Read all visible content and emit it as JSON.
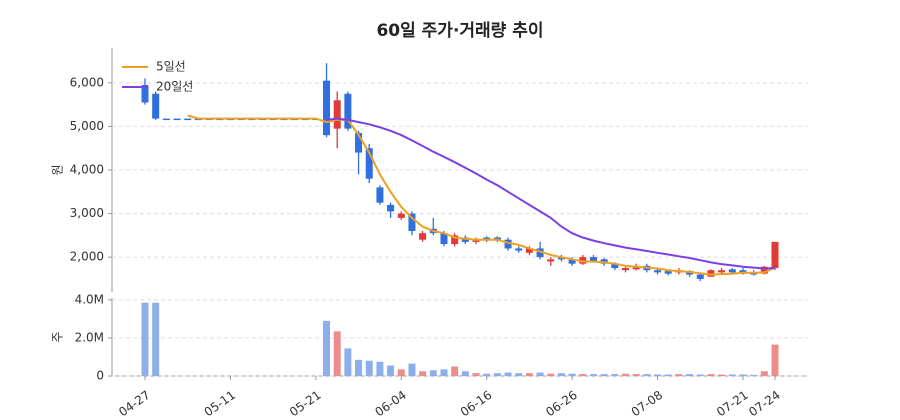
{
  "chart_data": {
    "type": "candlestick",
    "title": "60일 주가·거래량 추이",
    "y_label": "원",
    "volume_label": "주",
    "categories": [
      "04-27",
      null,
      null,
      null,
      null,
      null,
      null,
      null,
      "05-11",
      null,
      null,
      null,
      null,
      null,
      null,
      null,
      "05-21",
      null,
      null,
      null,
      null,
      null,
      null,
      null,
      "06-04",
      null,
      null,
      null,
      null,
      null,
      null,
      null,
      "06-16",
      null,
      null,
      null,
      null,
      null,
      null,
      null,
      "06-26",
      null,
      null,
      null,
      null,
      null,
      null,
      null,
      "07-08",
      null,
      null,
      null,
      null,
      null,
      null,
      null,
      "07-21",
      null,
      null,
      "07-24"
    ],
    "open": [
      5950,
      5750,
      5180,
      5180,
      5180,
      5180,
      5180,
      5180,
      5180,
      5180,
      5180,
      5180,
      5180,
      5180,
      5180,
      5180,
      5180,
      6050,
      4950,
      5750,
      4850,
      4500,
      3600,
      3200,
      2900,
      3000,
      2400,
      2650,
      2550,
      2300,
      2450,
      2350,
      2450,
      2450,
      2400,
      2200,
      2100,
      2200,
      1900,
      2000,
      1950,
      1850,
      2000,
      1950,
      1850,
      1700,
      1720,
      1800,
      1700,
      1680,
      1650,
      1680,
      1600,
      1550,
      1650,
      1720,
      1700,
      1650,
      1620,
      1750
    ],
    "high": [
      6100,
      5800,
      5180,
      5180,
      5180,
      5180,
      5180,
      5180,
      5180,
      5180,
      5180,
      5180,
      5180,
      5180,
      5180,
      5180,
      5180,
      6450,
      5800,
      5800,
      4900,
      4600,
      3650,
      3250,
      3050,
      3050,
      2600,
      2900,
      2600,
      2550,
      2500,
      2450,
      2480,
      2480,
      2450,
      2250,
      2250,
      2350,
      2000,
      2050,
      2000,
      2050,
      2050,
      1980,
      1880,
      1780,
      1850,
      1850,
      1750,
      1700,
      1750,
      1700,
      1650,
      1720,
      1750,
      1750,
      1750,
      1700,
      1800,
      2350
    ],
    "low": [
      5500,
      5150,
      5180,
      5180,
      5180,
      5180,
      5180,
      5180,
      5180,
      5180,
      5180,
      5180,
      5180,
      5180,
      5180,
      5180,
      5180,
      4750,
      4500,
      4900,
      3900,
      3700,
      3200,
      2900,
      2850,
      2500,
      2350,
      2500,
      2250,
      2250,
      2300,
      2300,
      2350,
      2350,
      2150,
      2100,
      2050,
      1950,
      1800,
      1900,
      1800,
      1820,
      1880,
      1800,
      1700,
      1650,
      1700,
      1650,
      1600,
      1580,
      1600,
      1550,
      1450,
      1550,
      1620,
      1620,
      1600,
      1580,
      1600,
      1700
    ],
    "close": [
      5550,
      5180,
      5180,
      5180,
      5180,
      5180,
      5180,
      5180,
      5180,
      5180,
      5180,
      5180,
      5180,
      5180,
      5180,
      5180,
      5180,
      4800,
      5600,
      4950,
      4400,
      3800,
      3250,
      3050,
      3000,
      2600,
      2550,
      2550,
      2300,
      2500,
      2350,
      2400,
      2380,
      2400,
      2200,
      2150,
      2200,
      2000,
      1950,
      1950,
      1850,
      2000,
      1900,
      1850,
      1750,
      1750,
      1780,
      1700,
      1650,
      1620,
      1700,
      1600,
      1500,
      1700,
      1700,
      1650,
      1620,
      1600,
      1780,
      2350
    ],
    "volume": [
      3850000,
      3850000,
      0,
      0,
      0,
      0,
      0,
      0,
      0,
      0,
      0,
      0,
      0,
      0,
      0,
      0,
      0,
      2900000,
      2350000,
      1450000,
      850000,
      800000,
      750000,
      550000,
      350000,
      650000,
      250000,
      300000,
      350000,
      500000,
      250000,
      150000,
      120000,
      150000,
      180000,
      150000,
      150000,
      180000,
      120000,
      150000,
      120000,
      100000,
      100000,
      100000,
      100000,
      120000,
      100000,
      100000,
      80000,
      80000,
      100000,
      100000,
      80000,
      100000,
      80000,
      80000,
      80000,
      60000,
      250000,
      1650000
    ],
    "up_color": "#e03a3a",
    "down_color": "#2f6fe0",
    "volume_up_color": "#ee8c8c",
    "volume_down_color": "#8caeea",
    "series": [
      {
        "name": "5일선",
        "color": "#f0a020",
        "values": [
          null,
          null,
          null,
          null,
          5250,
          5180,
          5180,
          5180,
          5180,
          5180,
          5180,
          5180,
          5180,
          5180,
          5180,
          5180,
          5180,
          5100,
          5150,
          5150,
          4800,
          4400,
          3900,
          3500,
          3150,
          2900,
          2700,
          2600,
          2550,
          2450,
          2420,
          2400,
          2400,
          2400,
          2330,
          2280,
          2200,
          2130,
          2050,
          2000,
          1950,
          1900,
          1900,
          1880,
          1850,
          1800,
          1780,
          1760,
          1740,
          1700,
          1680,
          1660,
          1630,
          1600,
          1610,
          1620,
          1640,
          1640,
          1650,
          1760
        ]
      },
      {
        "name": "20일선",
        "color": "#7b3fe4",
        "values": [
          null,
          null,
          null,
          null,
          null,
          null,
          null,
          null,
          null,
          null,
          null,
          null,
          null,
          null,
          null,
          null,
          null,
          5150,
          5180,
          5150,
          5100,
          5050,
          4980,
          4900,
          4800,
          4680,
          4550,
          4420,
          4300,
          4180,
          4050,
          3920,
          3780,
          3650,
          3500,
          3350,
          3200,
          3050,
          2900,
          2700,
          2550,
          2450,
          2380,
          2320,
          2270,
          2220,
          2180,
          2140,
          2100,
          2060,
          2020,
          1980,
          1930,
          1880,
          1840,
          1810,
          1780,
          1760,
          1740,
          1750
        ]
      }
    ],
    "ylim": [
      1200,
      6800
    ],
    "yticks": [
      {
        "value": 2000,
        "label": "2,000"
      },
      {
        "value": 3000,
        "label": "3,000"
      },
      {
        "value": 4000,
        "label": "4,000"
      },
      {
        "value": 5000,
        "label": "5,000"
      },
      {
        "value": 6000,
        "label": "6,000"
      }
    ],
    "volume_ylim": [
      0,
      4100000
    ],
    "volume_yticks": [
      0,
      {
        "value": 2000000,
        "label": "2.0M"
      },
      {
        "value": 4000000,
        "label": "4.0M"
      }
    ],
    "grid": true,
    "legend": "upper left"
  }
}
